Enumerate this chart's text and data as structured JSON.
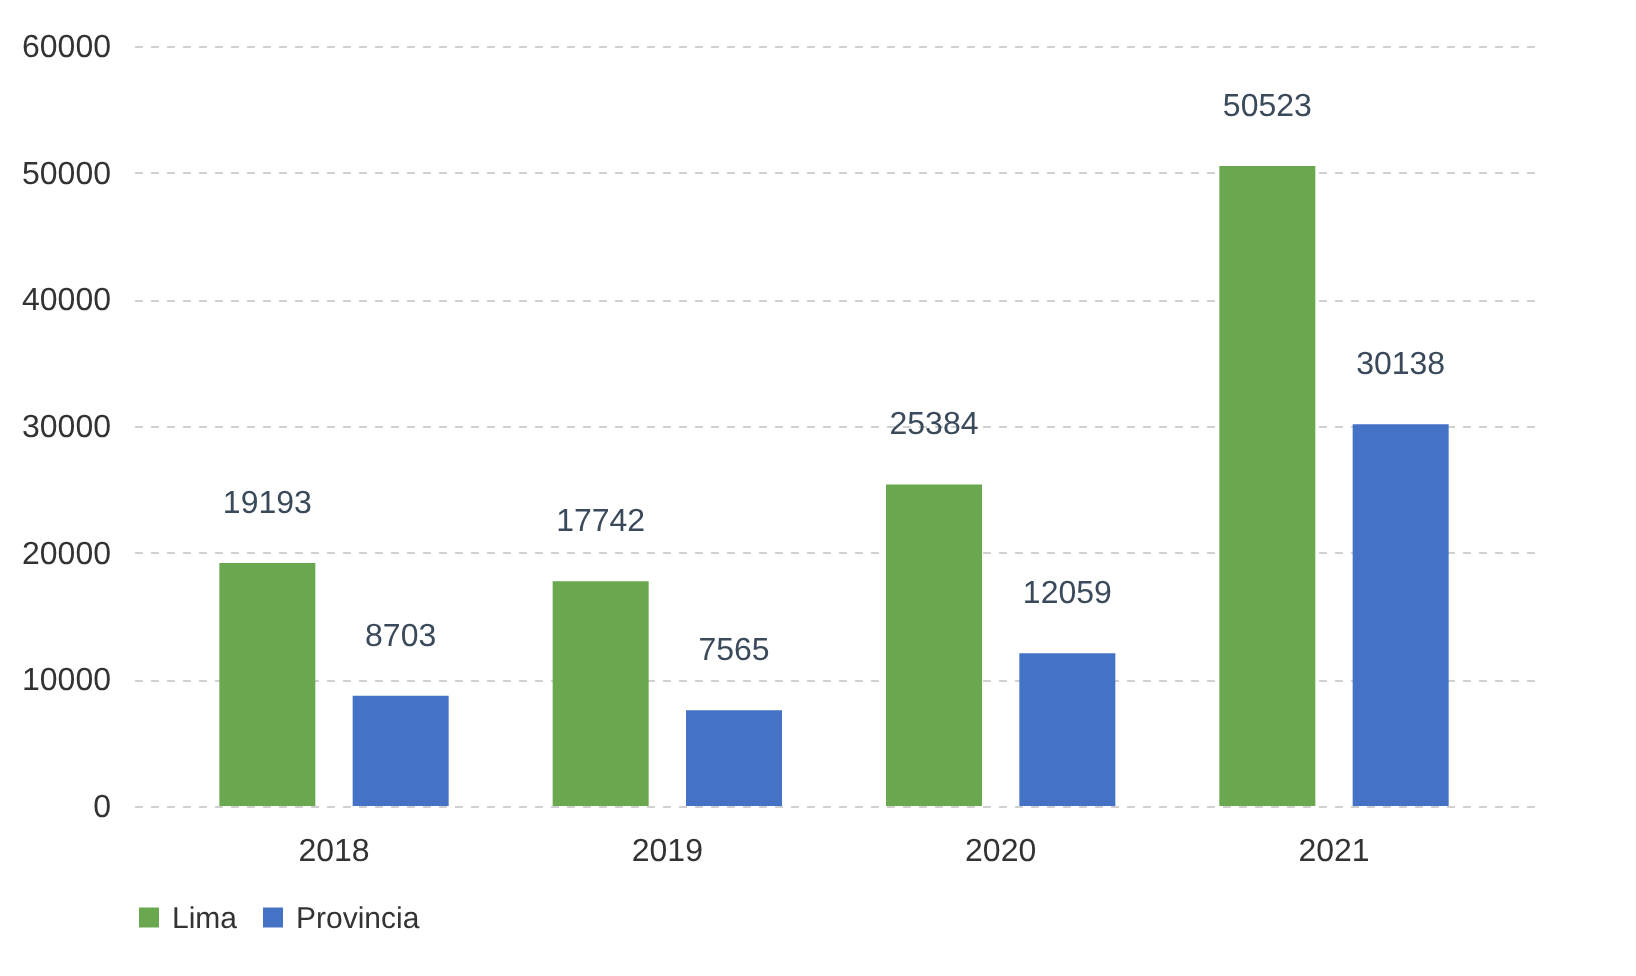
{
  "chart_data": {
    "type": "bar",
    "categories": [
      "2018",
      "2019",
      "2020",
      "2021"
    ],
    "series": [
      {
        "name": "Lima",
        "color": "#6aa84f",
        "values": [
          19193,
          17742,
          25384,
          50523
        ]
      },
      {
        "name": "Provincia",
        "color": "#4472c4",
        "values": [
          8703,
          7565,
          12059,
          30138
        ]
      }
    ],
    "ylim": [
      0,
      60000
    ],
    "yticks": [
      0,
      10000,
      20000,
      30000,
      40000,
      50000,
      60000
    ],
    "grid": "y",
    "legend": "bottom",
    "data_labels": true
  }
}
